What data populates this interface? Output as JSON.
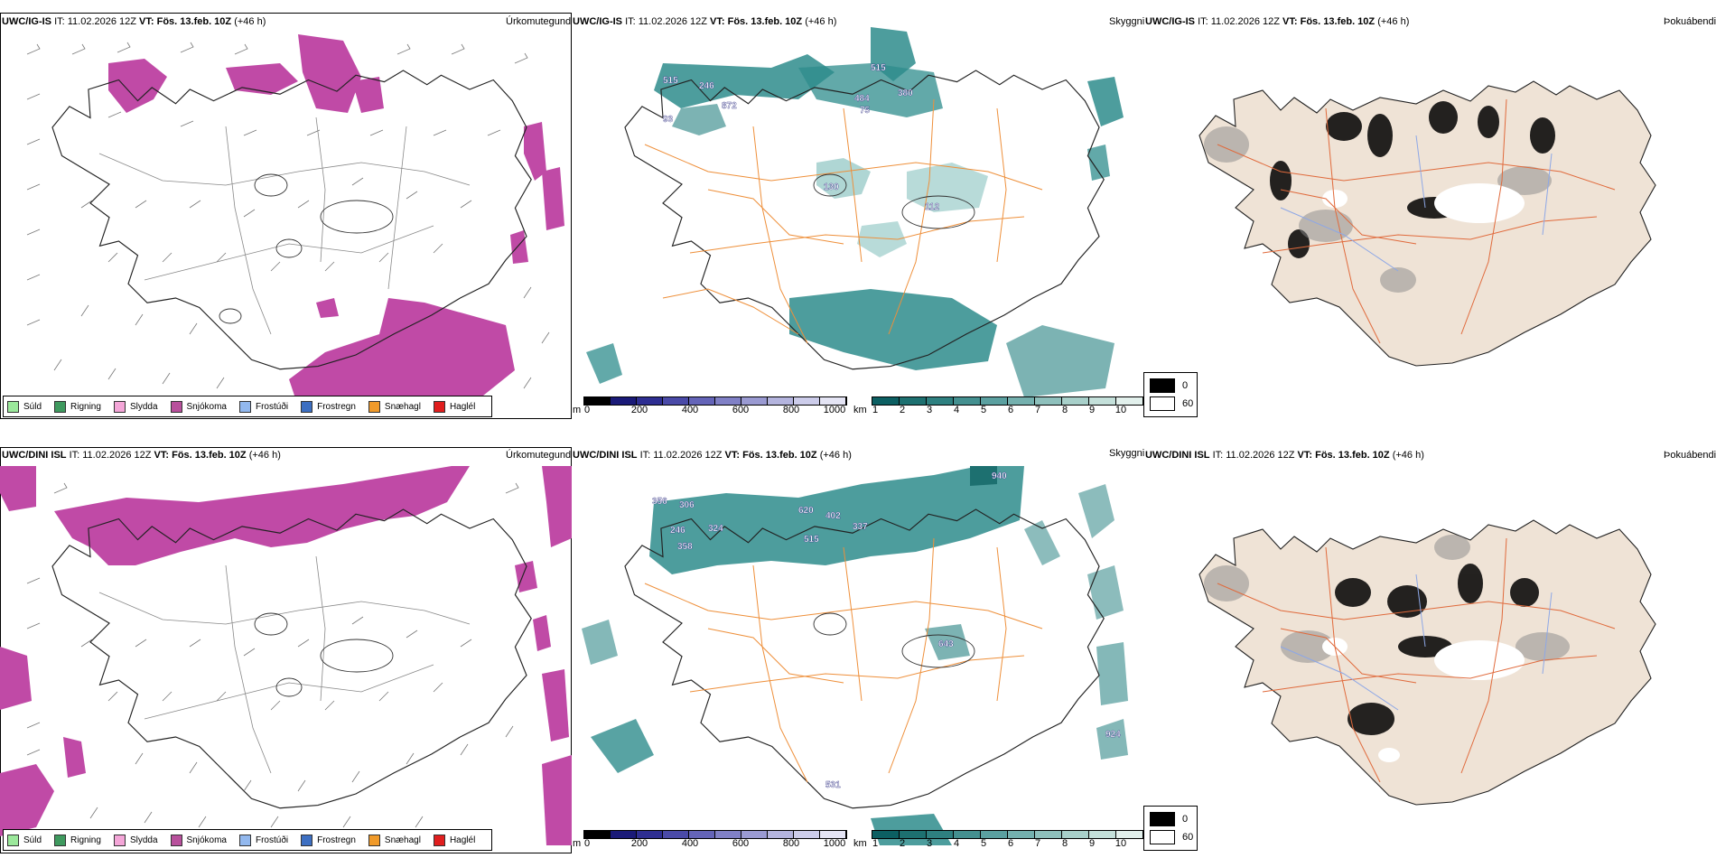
{
  "colors": {
    "snow": "#c04aa6",
    "cloud_dark": "#2e8c8c",
    "cloud_light": "#a6d2cf",
    "land_fog": "#efe3d6",
    "roads": "#e06a3c",
    "rivers": "#8da7e6",
    "roads_orange": "#ee8f3a"
  },
  "rows": [
    {
      "id": "ig-is",
      "model": "UWC/IG-IS",
      "it_label": "IT: 11.02.2026 12Z",
      "vt_label": "VT: Fös. 13.feb. 10Z",
      "lead": "(+46 h)",
      "panels": {
        "precip": "Úrkomutegund",
        "clouds": "Skyggni",
        "fog": "Þokuábendi"
      },
      "cloud_labels": [
        "515",
        "246",
        "872",
        "93",
        "515",
        "484",
        "75",
        "380",
        "130",
        "112"
      ]
    },
    {
      "id": "dini",
      "model": "UWC/DINI ISL",
      "it_label": "IT: 11.02.2026 12Z",
      "vt_label": "VT: Fös. 13.feb. 10Z",
      "lead": "(+46 h)",
      "panels": {
        "precip": "Úrkomutegund",
        "clouds": "Skyggni",
        "fog": "Þokuábendi"
      },
      "cloud_labels": [
        "356",
        "306",
        "246",
        "324",
        "358",
        "620",
        "402",
        "337",
        "515",
        "940",
        "643",
        "924",
        "531"
      ]
    }
  ],
  "precip_legend": [
    {
      "label": "Súld",
      "color": "#9be89b"
    },
    {
      "label": "Rigning",
      "color": "#3f9a5f"
    },
    {
      "label": "Slydda",
      "color": "#f4a6d8"
    },
    {
      "label": "Snjókoma",
      "color": "#b8509c"
    },
    {
      "label": "Frostúði",
      "color": "#92b8ee"
    },
    {
      "label": "Frostregn",
      "color": "#3d6fc2"
    },
    {
      "label": "Snæhagl",
      "color": "#f09a2a"
    },
    {
      "label": "Haglél",
      "color": "#e01e1e"
    }
  ],
  "cloudbase_bar": {
    "unit": "m",
    "ticks": [
      "0",
      "200",
      "400",
      "600",
      "800",
      "1000"
    ],
    "colors": [
      "#000000",
      "#1a1a78",
      "#2e2e92",
      "#4a4aa8",
      "#6464b8",
      "#8080c6",
      "#9a9ad2",
      "#b4b4de",
      "#ccccea",
      "#e4e4f4"
    ]
  },
  "visibility_bar": {
    "unit": "km",
    "ticks": [
      "1",
      "2",
      "3",
      "4",
      "5",
      "6",
      "7",
      "8",
      "9",
      "10"
    ],
    "colors": [
      "#0c5f62",
      "#1d7070",
      "#2e8080",
      "#449090",
      "#5ba0a0",
      "#74b0ae",
      "#8ec0bc",
      "#a8d0ca",
      "#c4e0da",
      "#e2f0ec"
    ]
  },
  "fog_legend": [
    {
      "label": "0",
      "color": "#000000"
    },
    {
      "label": "60",
      "color": "#ffffff"
    }
  ]
}
